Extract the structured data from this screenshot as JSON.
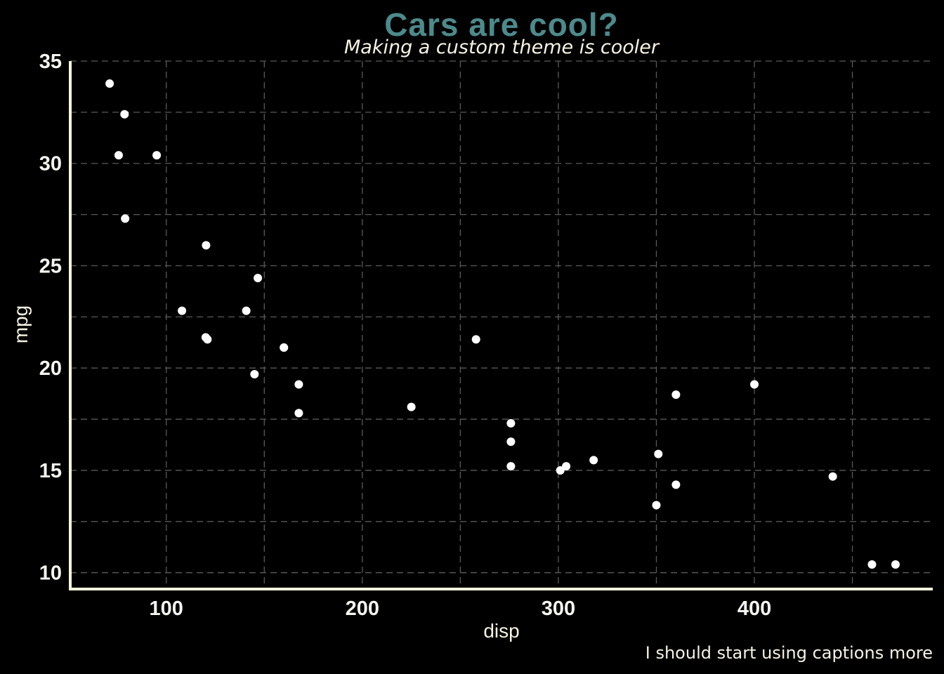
{
  "chart_data": {
    "type": "scatter",
    "title": "Cars are cool?",
    "subtitle": "Making a custom theme is cooler",
    "caption": "I should start using captions more",
    "xlabel": "disp",
    "ylabel": "mpg",
    "xlim": [
      51,
      491
    ],
    "ylim": [
      9.2,
      35
    ],
    "x_ticks": [
      100,
      200,
      300,
      400
    ],
    "y_ticks": [
      10,
      15,
      20,
      25,
      30,
      35
    ],
    "grid": true,
    "legend": "none",
    "points": [
      {
        "x": 160,
        "y": 21.0
      },
      {
        "x": 160,
        "y": 21.0
      },
      {
        "x": 108,
        "y": 22.8
      },
      {
        "x": 258,
        "y": 21.4
      },
      {
        "x": 360,
        "y": 18.7
      },
      {
        "x": 225,
        "y": 18.1
      },
      {
        "x": 360,
        "y": 14.3
      },
      {
        "x": 146.7,
        "y": 24.4
      },
      {
        "x": 140.8,
        "y": 22.8
      },
      {
        "x": 167.6,
        "y": 19.2
      },
      {
        "x": 167.6,
        "y": 17.8
      },
      {
        "x": 275.8,
        "y": 16.4
      },
      {
        "x": 275.8,
        "y": 17.3
      },
      {
        "x": 275.8,
        "y": 15.2
      },
      {
        "x": 472,
        "y": 10.4
      },
      {
        "x": 460,
        "y": 10.4
      },
      {
        "x": 440,
        "y": 14.7
      },
      {
        "x": 78.7,
        "y": 32.4
      },
      {
        "x": 75.7,
        "y": 30.4
      },
      {
        "x": 71.1,
        "y": 33.9
      },
      {
        "x": 120.1,
        "y": 21.5
      },
      {
        "x": 318,
        "y": 15.5
      },
      {
        "x": 304,
        "y": 15.2
      },
      {
        "x": 350,
        "y": 13.3
      },
      {
        "x": 400,
        "y": 19.2
      },
      {
        "x": 79,
        "y": 27.3
      },
      {
        "x": 120.3,
        "y": 26.0
      },
      {
        "x": 95.1,
        "y": 30.4
      },
      {
        "x": 351,
        "y": 15.8
      },
      {
        "x": 145,
        "y": 19.7
      },
      {
        "x": 301,
        "y": 15.0
      },
      {
        "x": 121,
        "y": 21.4
      }
    ]
  },
  "colors": {
    "background": "#000000",
    "title": "#4d8a8c",
    "text": "#f7f3e3",
    "tick_text": "#f5f5f0",
    "axis_line": "#fdf6dc",
    "grid": "#5a5a5a",
    "point": "#ffffff"
  }
}
